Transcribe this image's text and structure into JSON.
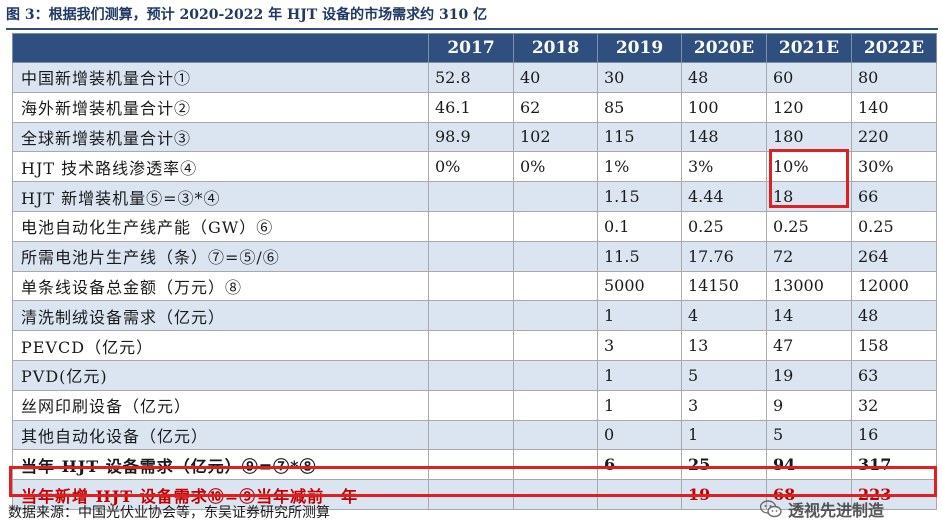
{
  "title": "图 3：根据我们测算，预计 2020-2022 年 HJT 设备的市场需求约 310 亿",
  "table": {
    "headers": [
      "",
      "2017",
      "2018",
      "2019",
      "2020E",
      "2021E",
      "2022E"
    ],
    "rows": [
      [
        "中国新增装机量合计①",
        "52.8",
        "40",
        "30",
        "48",
        "60",
        "80"
      ],
      [
        "海外新增装机量合计②",
        "46.1",
        "62",
        "85",
        "100",
        "120",
        "140"
      ],
      [
        "全球新增装机量合计③",
        "98.9",
        "102",
        "115",
        "148",
        "180",
        "220"
      ],
      [
        "HJT 技术路线渗透率④",
        "0%",
        "0%",
        "1%",
        "3%",
        "10%",
        "30%"
      ],
      [
        "HJT 新增装机量⑤=③*④",
        "",
        "",
        "1.15",
        "4.44",
        "18",
        "66"
      ],
      [
        "电池自动化生产线产能（GW）⑥",
        "",
        "",
        "0.1",
        "0.25",
        "0.25",
        "0.25"
      ],
      [
        "所需电池片生产线（条）⑦=⑤/⑥",
        "",
        "",
        "11.5",
        "17.76",
        "72",
        "264"
      ],
      [
        "单条线设备总金额（万元）⑧",
        "",
        "",
        "5000",
        "14150",
        "13000",
        "12000"
      ],
      [
        "清洗制绒设备需求（亿元）",
        "",
        "",
        "1",
        "4",
        "14",
        "48"
      ],
      [
        "PEVCD（亿元）",
        "",
        "",
        "3",
        "13",
        "47",
        "158"
      ],
      [
        "PVD(亿元)",
        "",
        "",
        "1",
        "5",
        "19",
        "63"
      ],
      [
        "丝网印刷设备（亿元）",
        "",
        "",
        "1",
        "3",
        "9",
        "32"
      ],
      [
        "其他自动化设备（亿元）",
        "",
        "",
        "0",
        "1",
        "5",
        "16"
      ],
      [
        "当年 HJT 设备需求（亿元）⑨=⑦*⑧",
        "",
        "",
        "6",
        "25",
        "94",
        "317"
      ],
      [
        "当年新增 HJT 设备需求⑩=⑨当年减前一年",
        "",
        "",
        "",
        "19",
        "68",
        "223"
      ]
    ]
  },
  "source": "数据来源：中国光伏业协会等，东吴证券研究所测算",
  "watermark": "透视先进制造",
  "colors": {
    "header_bg": "#2f4f7f",
    "band": "#dbe5f1",
    "highlight": "#e02020",
    "red_text": "#c00000"
  }
}
